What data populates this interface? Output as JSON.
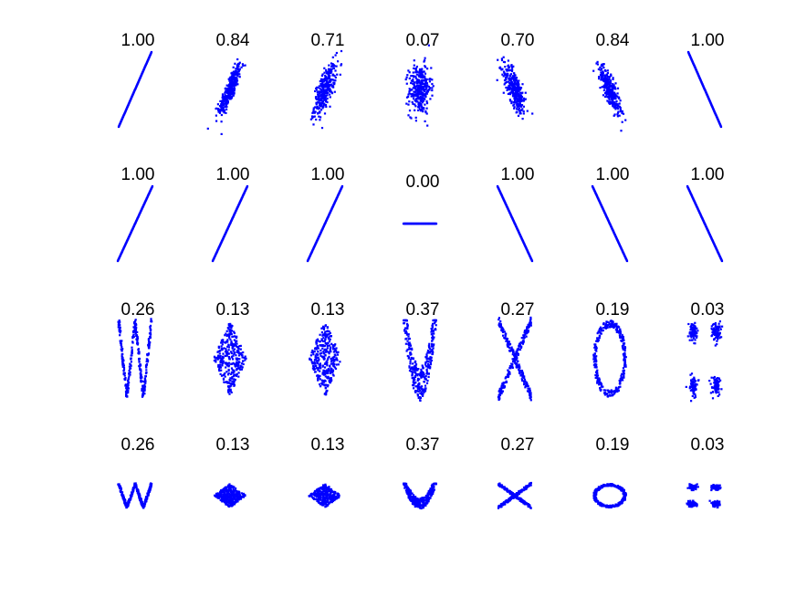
{
  "figure": {
    "rows": 4,
    "columns": 7,
    "marker_color": "#0000ff",
    "background": "#ffffff"
  },
  "chart_data": {
    "type": "scatter",
    "title": "",
    "panels": [
      {
        "label": "1.00",
        "row": 0,
        "col": 0,
        "shape": "line",
        "slope": 1
      },
      {
        "label": "0.84",
        "row": 0,
        "col": 1,
        "shape": "correlated",
        "correlation": 0.84
      },
      {
        "label": "0.71",
        "row": 0,
        "col": 2,
        "shape": "correlated",
        "correlation": 0.71
      },
      {
        "label": "0.07",
        "row": 0,
        "col": 3,
        "shape": "correlated",
        "correlation": 0.07
      },
      {
        "label": "0.70",
        "row": 0,
        "col": 4,
        "shape": "correlated",
        "correlation": -0.7
      },
      {
        "label": "0.84",
        "row": 0,
        "col": 5,
        "shape": "correlated",
        "correlation": -0.84
      },
      {
        "label": "1.00",
        "row": 0,
        "col": 6,
        "shape": "line",
        "slope": -1
      },
      {
        "label": "1.00",
        "row": 1,
        "col": 0,
        "shape": "line",
        "slope": 1.5
      },
      {
        "label": "1.00",
        "row": 1,
        "col": 1,
        "shape": "line",
        "slope": 1.5
      },
      {
        "label": "1.00",
        "row": 1,
        "col": 2,
        "shape": "line",
        "slope": 1.5
      },
      {
        "label": "0.00",
        "row": 1,
        "col": 3,
        "shape": "line",
        "slope": 0
      },
      {
        "label": "1.00",
        "row": 1,
        "col": 4,
        "shape": "line",
        "slope": -1.5
      },
      {
        "label": "1.00",
        "row": 1,
        "col": 5,
        "shape": "line",
        "slope": -1.5
      },
      {
        "label": "1.00",
        "row": 1,
        "col": 6,
        "shape": "line",
        "slope": -1.5
      },
      {
        "label": "0.26",
        "row": 2,
        "col": 0,
        "shape": "w",
        "aspect": "tall"
      },
      {
        "label": "0.13",
        "row": 2,
        "col": 1,
        "shape": "diamond",
        "aspect": "tall"
      },
      {
        "label": "0.13",
        "row": 2,
        "col": 2,
        "shape": "diamond",
        "aspect": "tall"
      },
      {
        "label": "0.37",
        "row": 2,
        "col": 3,
        "shape": "parabola",
        "aspect": "tall"
      },
      {
        "label": "0.27",
        "row": 2,
        "col": 4,
        "shape": "x",
        "aspect": "tall"
      },
      {
        "label": "0.19",
        "row": 2,
        "col": 5,
        "shape": "ring",
        "aspect": "tall"
      },
      {
        "label": "0.03",
        "row": 2,
        "col": 6,
        "shape": "clusters",
        "aspect": "tall"
      },
      {
        "label": "0.26",
        "row": 3,
        "col": 0,
        "shape": "w",
        "aspect": "flat"
      },
      {
        "label": "0.13",
        "row": 3,
        "col": 1,
        "shape": "diamond",
        "aspect": "flat"
      },
      {
        "label": "0.13",
        "row": 3,
        "col": 2,
        "shape": "diamond",
        "aspect": "flat"
      },
      {
        "label": "0.37",
        "row": 3,
        "col": 3,
        "shape": "parabola",
        "aspect": "flat"
      },
      {
        "label": "0.27",
        "row": 3,
        "col": 4,
        "shape": "x",
        "aspect": "flat"
      },
      {
        "label": "0.19",
        "row": 3,
        "col": 5,
        "shape": "ring",
        "aspect": "flat"
      },
      {
        "label": "0.03",
        "row": 3,
        "col": 6,
        "shape": "clusters",
        "aspect": "flat"
      }
    ]
  }
}
